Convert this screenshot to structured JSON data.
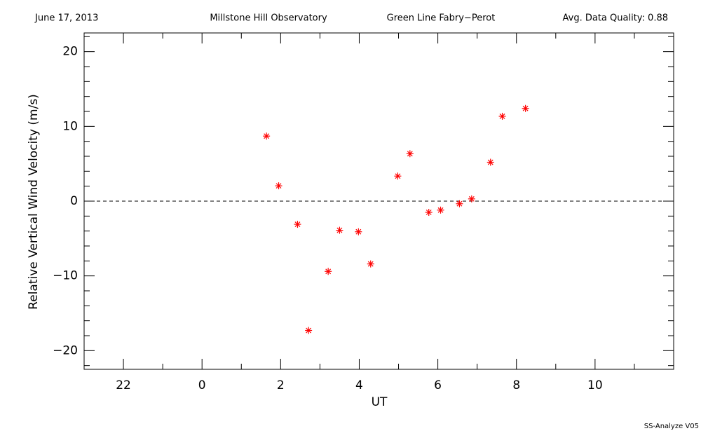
{
  "chart_data": {
    "type": "scatter",
    "date": "June 17, 2013",
    "observatory": "Millstone Hill Observatory",
    "instrument": "Green Line Fabry−Perot",
    "quality": "Avg. Data Quality: 0.88",
    "footer": "SS-Analyze V05",
    "x_label": "UT",
    "y_label": "Relative Vertical Wind Velocity (m/s)",
    "color": "#ff0000",
    "series": [
      {
        "x": [
          1.64,
          1.95,
          2.43,
          2.71,
          3.21,
          3.5,
          3.98,
          4.29,
          4.98,
          5.29,
          5.77,
          6.07,
          6.55,
          6.86,
          7.34,
          7.64,
          8.23
        ],
        "values": [
          8.7,
          2.05,
          -3.1,
          -17.3,
          -9.4,
          -3.9,
          -4.1,
          -8.4,
          3.35,
          6.35,
          -1.5,
          -1.2,
          -0.35,
          0.3,
          5.2,
          11.35,
          12.4
        ]
      }
    ],
    "xlim": [
      -3,
      12
    ],
    "ylim": [
      -22.5,
      22.5
    ],
    "xticks": [
      {
        "value": -2,
        "label": "22"
      },
      0,
      2,
      4,
      6,
      8,
      10
    ],
    "yticks": [
      {
        "value": -20,
        "label": "−20"
      },
      {
        "value": -10,
        "label": "−10"
      },
      0,
      10,
      20
    ],
    "xminor": [
      -3,
      -1,
      1,
      3,
      5,
      7,
      9,
      11
    ],
    "yminor": [
      -22,
      -18,
      -16,
      -14,
      -12,
      -8,
      -6,
      -4,
      -2,
      2,
      4,
      6,
      8,
      12,
      14,
      16,
      18,
      22
    ],
    "hline": 0
  }
}
